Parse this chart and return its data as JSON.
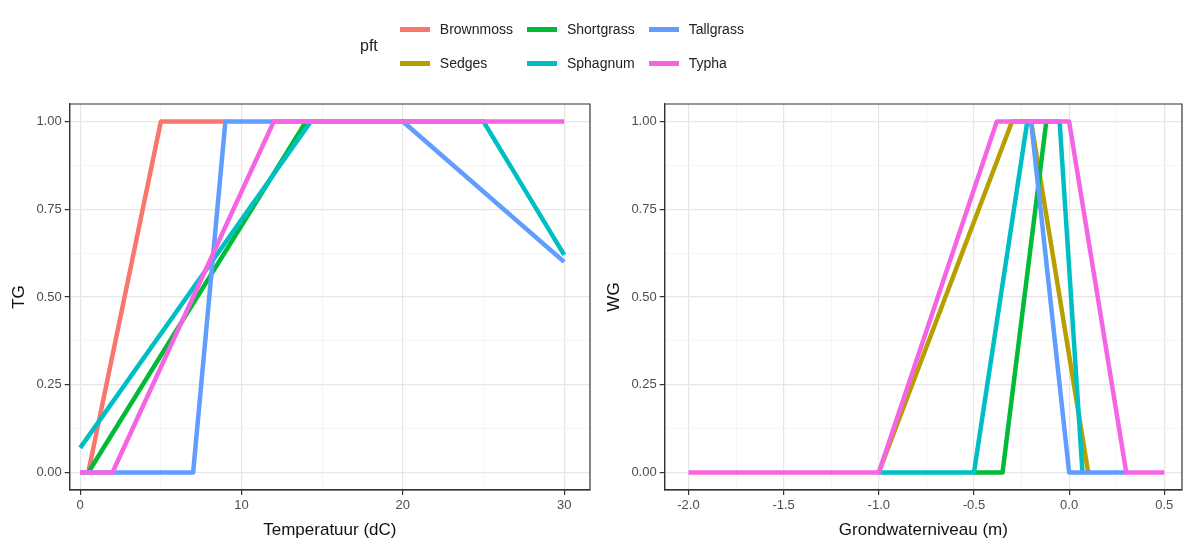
{
  "chart_data": [
    {
      "type": "line",
      "xlabel": "Temperatuur (dC)",
      "ylabel": "TG",
      "legend": "top",
      "legend_title": "pft",
      "grid": true,
      "marker": "none",
      "line_style": "solid",
      "xlim": [
        -0.65,
        31.6
      ],
      "xticks": [
        0,
        {
          "value": 5,
          "label": null
        },
        10,
        {
          "value": 15,
          "label": null
        },
        20,
        {
          "value": 25,
          "label": null
        },
        30
      ],
      "ylim": [
        -0.05,
        1.05
      ],
      "yticks": [
        {
          "value": 0,
          "label": "0.00"
        },
        {
          "value": 0.125,
          "label": null
        },
        {
          "value": 0.25,
          "label": "0.25"
        },
        {
          "value": 0.375,
          "label": null
        },
        {
          "value": 0.5,
          "label": "0.50"
        },
        {
          "value": 0.625,
          "label": null
        },
        {
          "value": 0.75,
          "label": "0.75"
        },
        {
          "value": 0.875,
          "label": null
        },
        {
          "value": 1,
          "label": "1.00"
        }
      ],
      "series": [
        {
          "name": "Brownmoss",
          "color": "#f8766d",
          "x": [
            0,
            0.5,
            5,
            9
          ],
          "values": [
            0,
            0,
            1,
            1
          ]
        },
        {
          "name": "Shortgrass",
          "color": "#00ba38",
          "x": [
            0.5,
            14
          ],
          "values": [
            0,
            1
          ]
        },
        {
          "name": "Sphagnum",
          "color": "#00bfc4",
          "x": [
            0,
            14.3,
            25,
            30
          ],
          "values": [
            0.07,
            1,
            1,
            0.62
          ]
        },
        {
          "name": "Tallgrass",
          "color": "#619cff",
          "x": [
            0,
            7,
            9,
            20,
            30
          ],
          "values": [
            0,
            0,
            1,
            1,
            0.6
          ]
        },
        {
          "name": "Typha",
          "color": "#f564e3",
          "x": [
            0,
            2,
            12,
            30
          ],
          "values": [
            0,
            0,
            1,
            1
          ]
        }
      ]
    },
    {
      "type": "line",
      "xlabel": "Grondwaterniveau (m)",
      "ylabel": "WG",
      "legend": "top",
      "grid": true,
      "marker": "none",
      "line_style": "solid",
      "xlim": [
        -2.125,
        0.593
      ],
      "xticks": [
        {
          "value": -2,
          "label": "-2.0"
        },
        {
          "value": -1.75,
          "label": null
        },
        {
          "value": -1.5,
          "label": "-1.5"
        },
        {
          "value": -1.25,
          "label": null
        },
        {
          "value": -1,
          "label": "-1.0"
        },
        {
          "value": -0.75,
          "label": null
        },
        {
          "value": -0.5,
          "label": "-0.5"
        },
        {
          "value": -0.25,
          "label": null
        },
        {
          "value": 0,
          "label": "0.0"
        },
        {
          "value": 0.25,
          "label": null
        },
        {
          "value": 0.5,
          "label": "0.5"
        }
      ],
      "ylim": [
        -0.05,
        1.05
      ],
      "yticks": [
        {
          "value": 0,
          "label": "0.00"
        },
        {
          "value": 0.125,
          "label": null
        },
        {
          "value": 0.25,
          "label": "0.25"
        },
        {
          "value": 0.375,
          "label": null
        },
        {
          "value": 0.5,
          "label": "0.50"
        },
        {
          "value": 0.625,
          "label": null
        },
        {
          "value": 0.75,
          "label": "0.75"
        },
        {
          "value": 0.875,
          "label": null
        },
        {
          "value": 1,
          "label": "1.00"
        }
      ],
      "series": [
        {
          "name": "Sedges",
          "color": "#b79f00",
          "x": [
            -1,
            -0.3,
            -0.2,
            0.1
          ],
          "values": [
            0,
            1,
            1,
            0
          ]
        },
        {
          "name": "Shortgrass",
          "color": "#00ba38",
          "x": [
            -0.5,
            -0.35,
            -0.12
          ],
          "values": [
            0,
            0,
            1
          ]
        },
        {
          "name": "Sphagnum",
          "color": "#00bfc4",
          "x": [
            -1,
            -0.5,
            -0.22,
            -0.05,
            0.07
          ],
          "values": [
            0,
            0,
            1,
            1,
            0
          ]
        },
        {
          "name": "Tallgrass",
          "color": "#619cff",
          "x": [
            -0.2,
            0,
            0.3
          ],
          "values": [
            1,
            0,
            0
          ]
        },
        {
          "name": "Typha",
          "color": "#f564e3",
          "x": [
            -2,
            -1,
            -0.38,
            0,
            0.3,
            0.5
          ],
          "values": [
            0,
            0,
            1,
            1,
            0,
            0
          ]
        }
      ]
    }
  ]
}
